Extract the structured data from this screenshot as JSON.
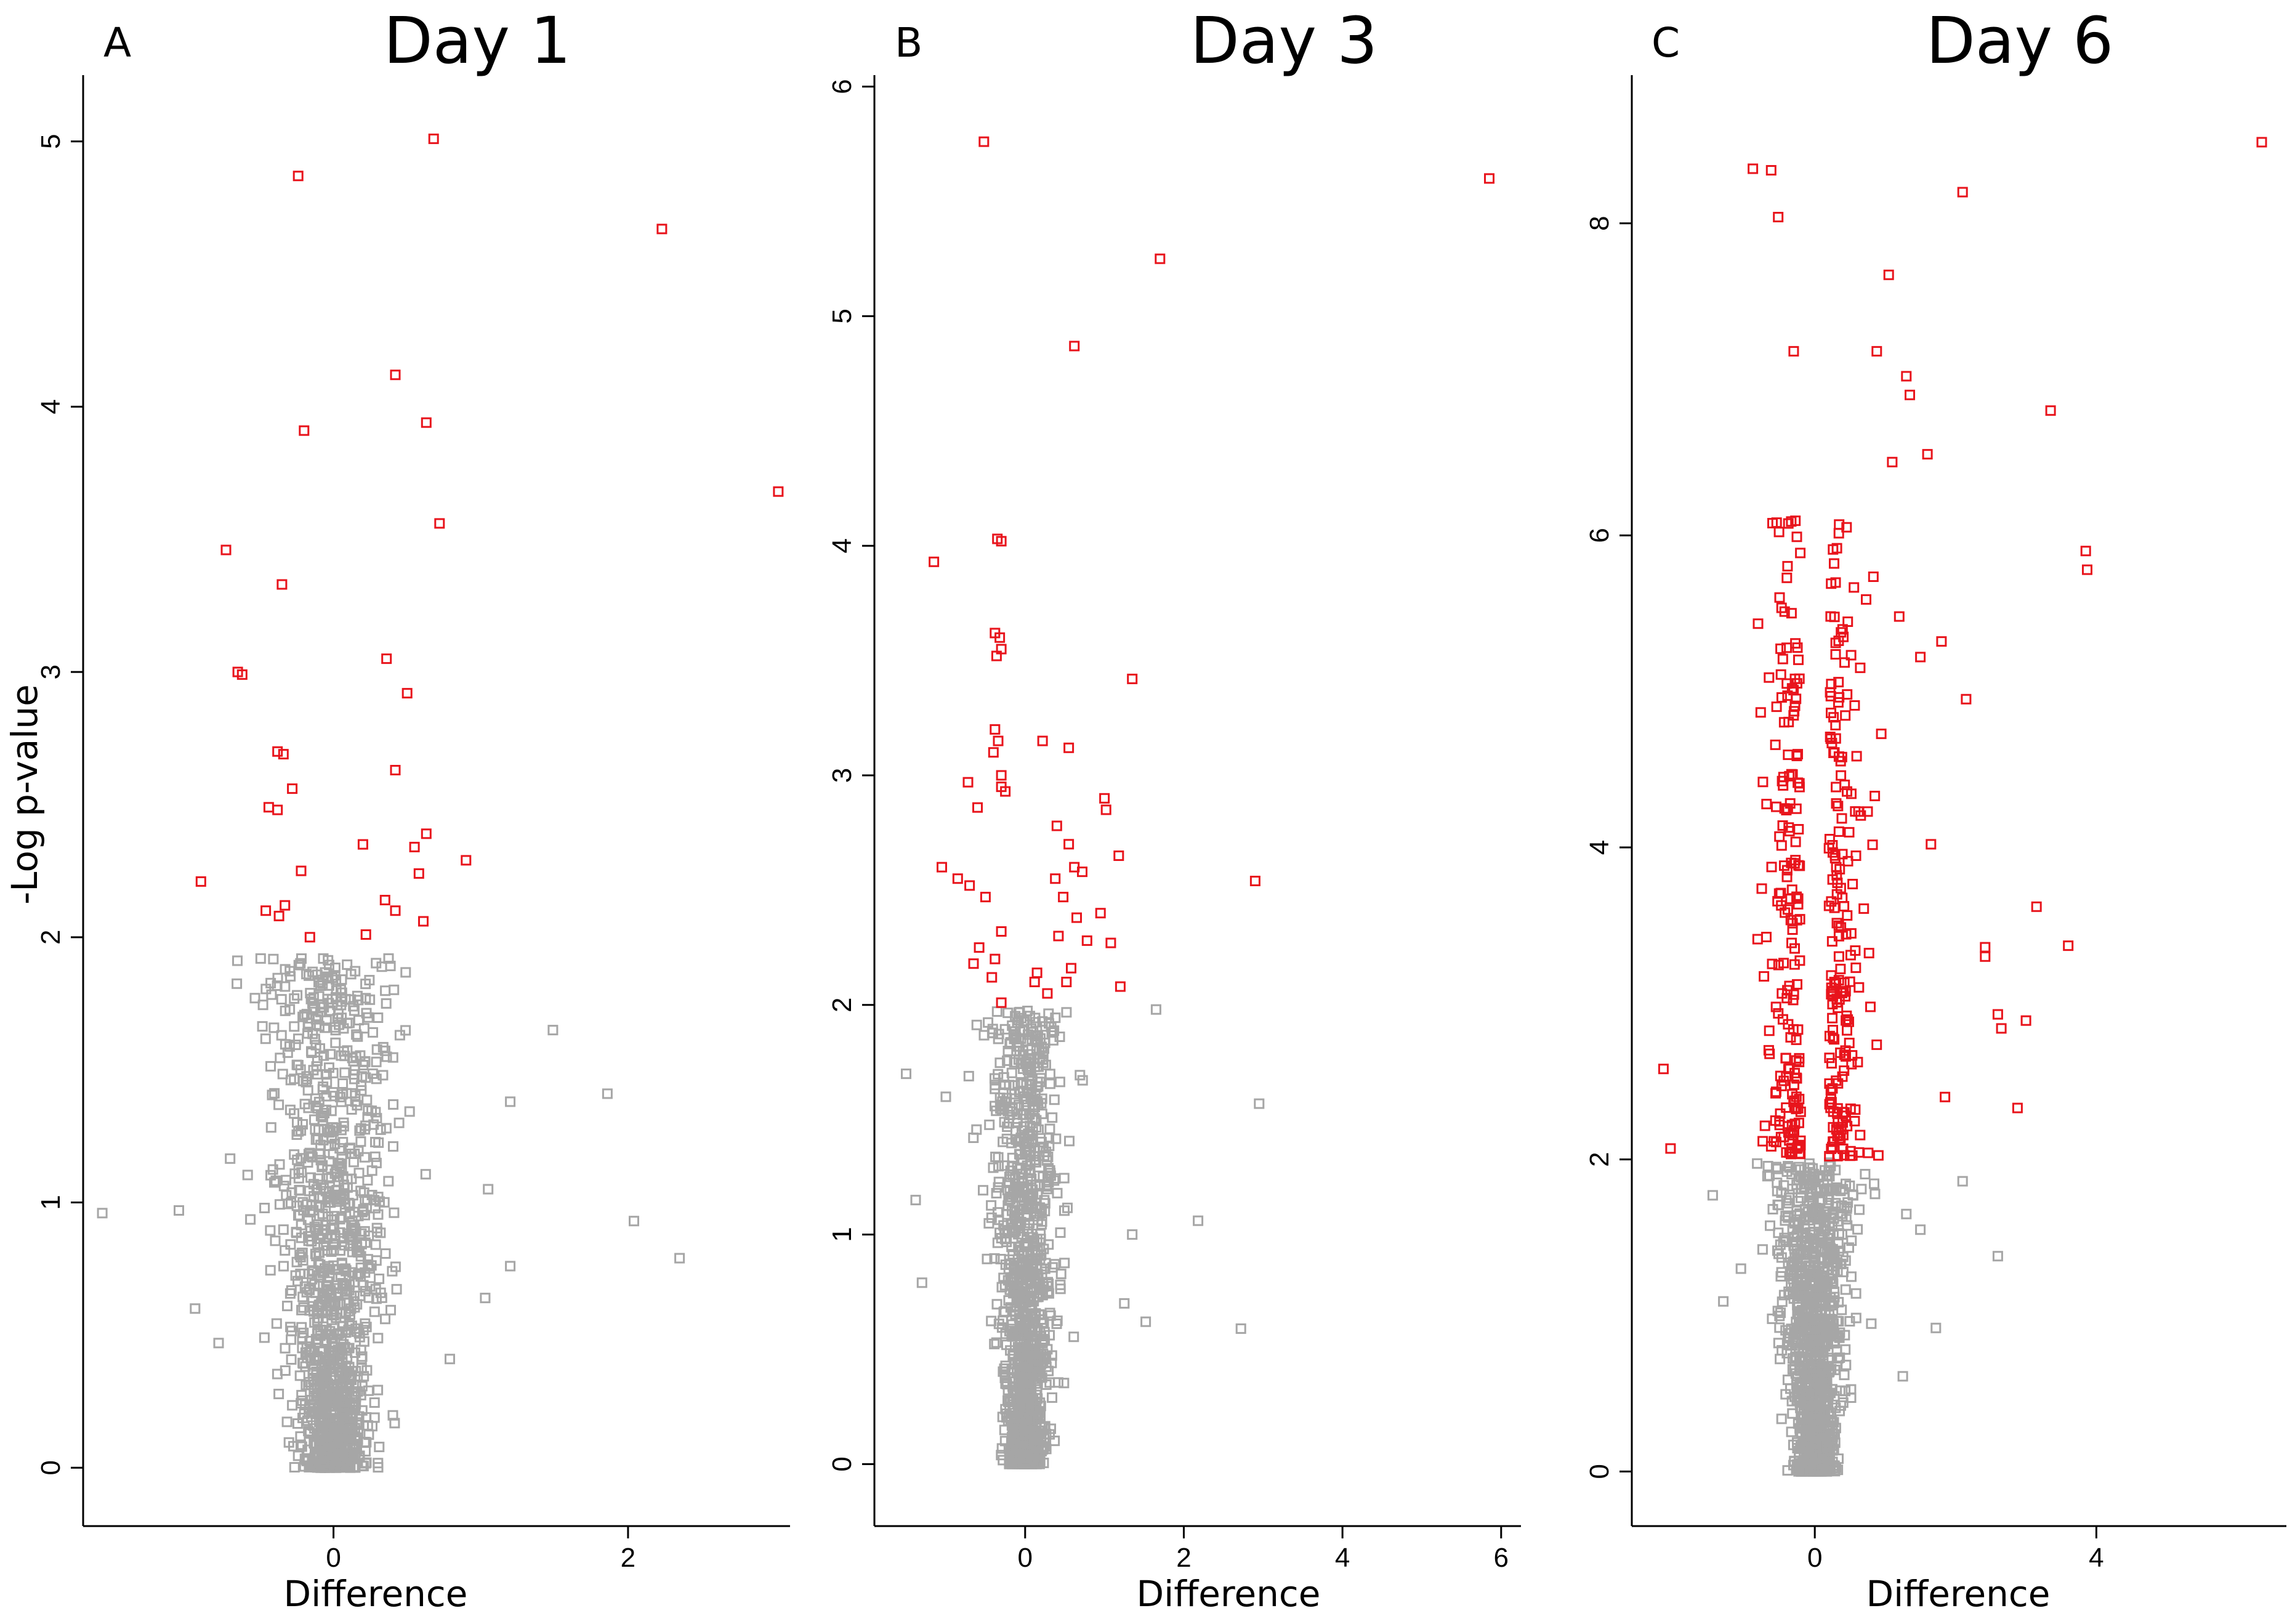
{
  "figure": {
    "y_axis_label": "-Log p-value",
    "x_axis_label": "Difference"
  },
  "colors": {
    "significant": "#e8141c",
    "not_significant": "#a6a6a6",
    "axis": "#000000"
  },
  "chart_data": [
    {
      "type": "scatter",
      "panel_letter": "A",
      "title": "Day 1",
      "xlabel": "Difference",
      "ylabel": "-Log p-value",
      "xlim": [
        -1.7,
        3.1
      ],
      "ylim": [
        -0.22,
        5.25
      ],
      "xticks": [
        0,
        2
      ],
      "yticks": [
        0,
        1,
        2,
        3,
        4,
        5
      ],
      "significance_threshold": 2.0,
      "background_cloud": {
        "center_x": 0.0,
        "spread_x": 0.32,
        "y_max": 1.92,
        "n": 1300,
        "seed": 11
      },
      "series": [
        {
          "name": "significant",
          "color": "#e8141c",
          "x": [
            0.68,
            -0.24,
            2.23,
            0.42,
            -0.2,
            0.63,
            0.72,
            -0.73,
            -0.35,
            -0.65,
            -0.62,
            0.36,
            0.5,
            -0.38,
            -0.34,
            0.42,
            -0.28,
            -0.44,
            -0.38,
            0.63,
            0.2,
            0.55,
            0.9,
            -0.22,
            0.58,
            0.35,
            -0.33,
            -0.46,
            0.42,
            -0.37,
            0.61,
            -0.16,
            0.22,
            -0.9,
            3.02
          ],
          "y": [
            5.01,
            4.87,
            4.67,
            4.12,
            3.91,
            3.94,
            3.56,
            3.46,
            3.33,
            3.0,
            2.99,
            3.05,
            2.92,
            2.7,
            2.69,
            2.63,
            2.56,
            2.49,
            2.48,
            2.39,
            2.35,
            2.34,
            2.29,
            2.25,
            2.24,
            2.14,
            2.12,
            2.1,
            2.1,
            2.08,
            2.06,
            2.0,
            2.01,
            2.21,
            3.68
          ]
        },
        {
          "name": "not significant",
          "color": "#a6a6a6",
          "x": [
            1.49,
            1.86,
            1.2,
            1.05,
            2.04,
            2.35,
            -1.05,
            -1.57,
            -0.94,
            -0.78,
            1.2,
            1.03,
            0.79
          ],
          "y": [
            1.65,
            1.41,
            1.38,
            1.05,
            0.93,
            0.79,
            0.97,
            0.96,
            0.6,
            0.47,
            0.76,
            0.64,
            0.41
          ]
        }
      ]
    },
    {
      "type": "scatter",
      "panel_letter": "B",
      "title": "Day 3",
      "xlabel": "Difference",
      "ylabel": "-Log p-value",
      "xlim": [
        -1.9,
        6.25
      ],
      "ylim": [
        -0.27,
        6.05
      ],
      "xticks": [
        0,
        2,
        4,
        6
      ],
      "yticks": [
        0,
        1,
        2,
        3,
        4,
        5,
        6
      ],
      "significance_threshold": 2.0,
      "background_cloud": {
        "center_x": 0.0,
        "spread_x": 0.33,
        "y_max": 1.98,
        "n": 1300,
        "seed": 23
      },
      "series": [
        {
          "name": "significant",
          "color": "#e8141c",
          "x": [
            -0.52,
            5.85,
            1.7,
            0.62,
            -1.15,
            -0.35,
            -0.3,
            -0.38,
            -0.32,
            -0.3,
            -0.36,
            1.35,
            -0.38,
            -0.34,
            -0.3,
            0.22,
            0.55,
            -0.4,
            -0.3,
            -0.25,
            -0.72,
            1.0,
            1.02,
            -0.6,
            1.18,
            0.4,
            0.55,
            -1.05,
            -0.85,
            0.62,
            2.9,
            -0.7,
            0.38,
            0.48,
            0.72,
            -0.5,
            0.95,
            0.65,
            -0.3,
            0.78,
            -0.58,
            0.42,
            0.12,
            -0.38,
            1.08,
            1.2,
            0.58,
            0.52,
            0.28,
            -0.3,
            -0.65,
            -0.42,
            0.15
          ],
          "y": [
            5.76,
            5.6,
            5.25,
            4.87,
            3.93,
            4.03,
            4.02,
            3.62,
            3.6,
            3.55,
            3.52,
            3.42,
            3.2,
            3.15,
            3.0,
            3.15,
            3.12,
            3.1,
            2.95,
            2.93,
            2.97,
            2.9,
            2.85,
            2.86,
            2.65,
            2.78,
            2.7,
            2.6,
            2.55,
            2.6,
            2.54,
            2.52,
            2.55,
            2.47,
            2.58,
            2.47,
            2.4,
            2.38,
            2.32,
            2.28,
            2.25,
            2.3,
            2.1,
            2.2,
            2.27,
            2.08,
            2.16,
            2.1,
            2.05,
            2.01,
            2.18,
            2.12,
            2.14
          ]
        },
        {
          "name": "not significant",
          "color": "#a6a6a6",
          "x": [
            1.65,
            2.95,
            2.18,
            2.72,
            1.52,
            1.35,
            1.25,
            -1.38,
            -1.5,
            -1.3,
            -1.0
          ],
          "y": [
            1.98,
            1.57,
            1.06,
            0.59,
            0.62,
            1.0,
            0.7,
            1.15,
            1.7,
            0.79,
            1.6
          ]
        }
      ]
    },
    {
      "type": "scatter",
      "panel_letter": "C",
      "title": "Day 6",
      "xlabel": "Difference",
      "ylabel": "-Log p-value",
      "xlim": [
        -2.6,
        6.7
      ],
      "ylim": [
        -0.35,
        8.95
      ],
      "xticks": [
        0,
        4
      ],
      "yticks": [
        0,
        2,
        4,
        6,
        8
      ],
      "significance_threshold": 2.0,
      "background_cloud": {
        "center_x": 0.0,
        "spread_x": 0.38,
        "y_max": 1.98,
        "n": 1300,
        "seed": 37
      },
      "series": [
        {
          "name": "significant",
          "color": "#e8141c",
          "x": [
            6.35,
            -0.88,
            -0.62,
            2.1,
            -0.52,
            1.05,
            -0.3,
            0.88,
            1.3,
            3.35,
            3.85,
            3.87,
            2.15,
            3.15,
            3.6,
            2.42,
            2.42,
            2.6,
            3.0,
            2.65,
            2.88,
            1.85,
            -2.15,
            -2.05,
            1.5,
            1.8,
            1.2,
            1.6,
            1.1,
            1.65,
            1.35
          ],
          "y": [
            8.52,
            8.35,
            8.34,
            8.2,
            8.04,
            7.67,
            7.18,
            7.18,
            7.02,
            6.8,
            5.9,
            5.78,
            4.95,
            3.62,
            3.37,
            3.36,
            3.3,
            2.93,
            2.89,
            2.84,
            2.33,
            2.4,
            2.58,
            2.07,
            5.22,
            5.32,
            5.48,
            6.52,
            6.47,
            4.02,
            6.9
          ]
        },
        {
          "name": "not significant",
          "color": "#a6a6a6",
          "x": [
            -1.45,
            -1.3,
            -1.05,
            2.1,
            2.6,
            1.25,
            1.72,
            1.5,
            1.3
          ],
          "y": [
            1.77,
            1.09,
            1.3,
            1.86,
            1.38,
            0.61,
            0.92,
            1.55,
            1.65
          ]
        }
      ],
      "dense_red_cloud": {
        "center_x": 0.0,
        "spread_x": 0.45,
        "y_min": 2.02,
        "y_max": 6.1,
        "n": 380,
        "seed": 53
      }
    }
  ]
}
